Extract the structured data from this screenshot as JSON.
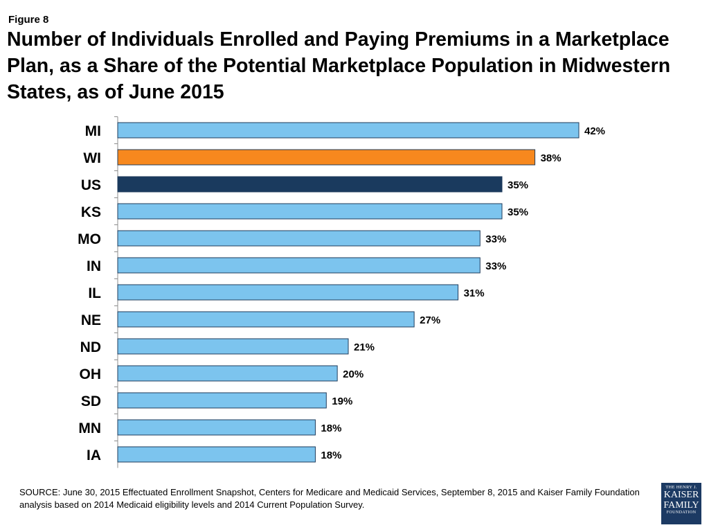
{
  "figure_label": "Figure 8",
  "title": "Number of Individuals Enrolled and Paying Premiums in a Marketplace Plan, as a Share of the Potential Marketplace Population in Midwestern States, as of June 2015",
  "source": "SOURCE: June 30, 2015 Effectuated Enrollment Snapshot, Centers for Medicare and Medicaid Services, September 8, 2015 and Kaiser Family Foundation analysis based on 2014 Medicaid eligibility levels and 2014 Current Population Survey.",
  "logo": {
    "line1": "THE HENRY J.",
    "line2": "KAISER",
    "line3": "FAMILY",
    "line4": "FOUNDATION"
  },
  "colors": {
    "default_bar": "#7cc4ee",
    "highlight_bar": "#f7881e",
    "us_bar": "#1a3a5e",
    "bar_outline": "#1f3b5b"
  },
  "chart_data": {
    "type": "bar",
    "orientation": "horizontal",
    "categories": [
      "MI",
      "WI",
      "US",
      "KS",
      "MO",
      "IN",
      "IL",
      "NE",
      "ND",
      "OH",
      "SD",
      "MN",
      "IA"
    ],
    "values": [
      42,
      38,
      35,
      35,
      33,
      33,
      31,
      27,
      21,
      20,
      19,
      18,
      18
    ],
    "labels": [
      "42%",
      "38%",
      "35%",
      "35%",
      "33%",
      "33%",
      "31%",
      "27%",
      "21%",
      "20%",
      "19%",
      "18%",
      "18%"
    ],
    "bar_colors": [
      "#7cc4ee",
      "#f7881e",
      "#1a3a5e",
      "#7cc4ee",
      "#7cc4ee",
      "#7cc4ee",
      "#7cc4ee",
      "#7cc4ee",
      "#7cc4ee",
      "#7cc4ee",
      "#7cc4ee",
      "#7cc4ee",
      "#7cc4ee"
    ],
    "xlim": [
      0,
      42
    ],
    "title": "",
    "xlabel": "",
    "ylabel": "",
    "grid": false,
    "legend": "none"
  }
}
